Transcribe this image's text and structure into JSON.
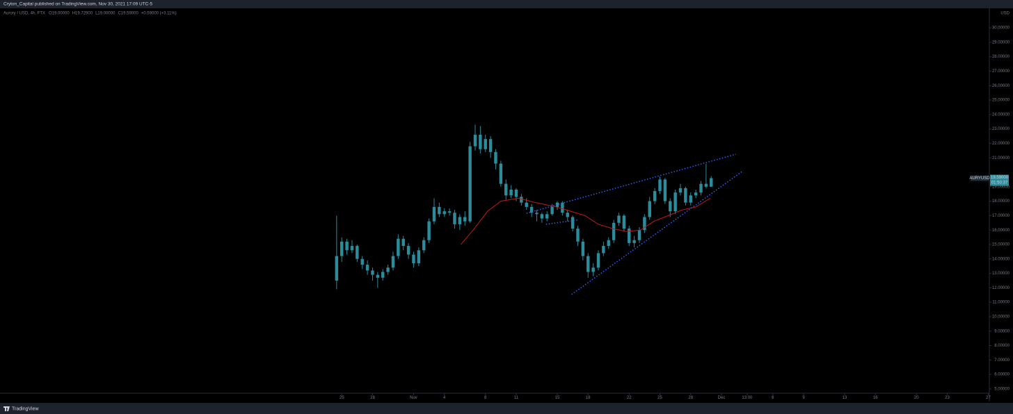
{
  "header": {
    "publisher": "Cryton_Capital published on TradingView.com, Nov 30, 2021 17:09 UTC-5",
    "symbol": "Aurory / USD, 4h, FTX",
    "ohlc": [
      "O19.00000",
      "H19.72900",
      "L19.00000",
      "C19.59000",
      "+0.59000 (+3.11%)"
    ]
  },
  "footer": {
    "brand": "TradingView"
  },
  "chart_data": {
    "type": "candlestick",
    "currency": "USD",
    "price_tag": {
      "symbol": "AURYUSD",
      "price": "19.59000",
      "countdown": "01:50:37"
    },
    "candle_color": "#2b8c9c",
    "x": [
      -0.5,
      0,
      0.5,
      1,
      1.5,
      2,
      2.5,
      3,
      3.5,
      4,
      4.5,
      5,
      5.5,
      6,
      6.5,
      7,
      7.5,
      8,
      8.5,
      9,
      9.5,
      10,
      10.5,
      11,
      11.5,
      12,
      12.5,
      13,
      13.5,
      14,
      14.5,
      15,
      15.5,
      16,
      16.5,
      17,
      17.5,
      18,
      18.5,
      19,
      19.5,
      20,
      20.5,
      21,
      21.5,
      22,
      22.5,
      23,
      23.5,
      24,
      24.5,
      25,
      25.5,
      26,
      26.5,
      27,
      27.5,
      28,
      28.5,
      29,
      29.5,
      30,
      30.5,
      31,
      31.5,
      32,
      32.5,
      33,
      33.5,
      34,
      34.5,
      35,
      35.5,
      36
    ],
    "open": [
      12.5,
      14.2,
      15.2,
      14.6,
      14.9,
      14.0,
      13.6,
      13.2,
      12.9,
      12.7,
      13.1,
      13.4,
      14.2,
      15.4,
      14.9,
      14.3,
      13.7,
      14.6,
      15.3,
      16.6,
      17.6,
      17.1,
      17.3,
      17.2,
      16.4,
      16.9,
      16.6,
      21.8,
      22.6,
      21.6,
      22.3,
      21.4,
      20.6,
      19.2,
      18.4,
      18.8,
      18.3,
      17.9,
      17.6,
      17.2,
      17.1,
      16.8,
      17.1,
      17.6,
      17.9,
      17.2,
      16.9,
      16.1,
      15.2,
      14.2,
      13.1,
      13.4,
      14.4,
      14.9,
      15.3,
      16.5,
      17.0,
      16.1,
      15.1,
      15.3,
      16.0,
      16.9,
      18.0,
      18.7,
      19.5,
      18.0,
      17.3,
      18.6,
      18.9,
      17.9,
      18.4,
      18.6,
      19.2,
      19.0
    ],
    "high": [
      17.0,
      15.5,
      15.4,
      15.3,
      15.0,
      14.2,
      13.9,
      13.4,
      13.1,
      13.3,
      13.6,
      14.5,
      15.7,
      15.6,
      15.1,
      14.5,
      14.8,
      15.5,
      16.8,
      18.2,
      17.9,
      17.5,
      17.5,
      17.4,
      17.1,
      17.3,
      22.1,
      23.3,
      23.2,
      22.6,
      22.5,
      21.6,
      20.8,
      19.5,
      19.1,
      18.9,
      18.5,
      18.2,
      17.8,
      17.4,
      17.2,
      17.3,
      17.8,
      18.0,
      18.0,
      17.4,
      17.0,
      16.3,
      15.4,
      14.4,
      13.7,
      14.6,
      15.2,
      15.5,
      16.7,
      17.2,
      17.1,
      16.3,
      15.6,
      16.2,
      17.1,
      18.3,
      18.9,
      19.7,
      19.6,
      18.2,
      18.8,
      19.2,
      19.0,
      18.6,
      18.8,
      19.4,
      20.6,
      19.729
    ],
    "low": [
      11.9,
      13.8,
      14.3,
      14.4,
      13.8,
      13.3,
      12.9,
      12.5,
      12.0,
      12.5,
      12.9,
      13.2,
      14.0,
      14.6,
      14.0,
      13.4,
      13.5,
      14.4,
      15.1,
      16.4,
      16.9,
      16.9,
      17.0,
      16.1,
      16.0,
      16.3,
      16.5,
      21.5,
      21.3,
      21.4,
      21.0,
      20.2,
      19.0,
      18.1,
      18.2,
      18.0,
      17.7,
      17.4,
      16.9,
      16.6,
      16.5,
      16.6,
      17.0,
      17.4,
      17.0,
      16.6,
      15.9,
      14.9,
      13.9,
      12.7,
      12.8,
      13.2,
      14.2,
      14.7,
      15.1,
      16.3,
      15.9,
      14.9,
      14.8,
      15.1,
      15.8,
      16.7,
      17.8,
      18.5,
      17.8,
      16.9,
      17.1,
      18.4,
      17.7,
      17.7,
      18.2,
      18.4,
      18.9,
      19.0
    ],
    "close": [
      14.2,
      15.2,
      14.6,
      14.9,
      14.0,
      13.6,
      13.2,
      12.9,
      12.7,
      13.1,
      13.4,
      14.2,
      15.4,
      14.9,
      14.3,
      13.7,
      14.6,
      15.3,
      16.6,
      17.6,
      17.1,
      17.3,
      17.2,
      16.4,
      16.9,
      16.6,
      21.8,
      22.6,
      21.6,
      22.3,
      21.4,
      20.6,
      19.2,
      18.4,
      18.8,
      18.3,
      17.9,
      17.6,
      17.2,
      17.1,
      16.8,
      17.1,
      17.6,
      17.9,
      17.2,
      16.9,
      16.1,
      15.2,
      14.2,
      13.1,
      13.4,
      14.4,
      14.9,
      15.3,
      16.5,
      17.0,
      16.1,
      15.1,
      15.3,
      16.0,
      16.9,
      18.0,
      18.7,
      19.5,
      18.0,
      17.3,
      18.6,
      18.9,
      17.9,
      18.4,
      18.6,
      19.2,
      19.0,
      19.59
    ],
    "ma": {
      "color": "#c2181b",
      "x": [
        11.6,
        12.8,
        14.2,
        15.5,
        17.2,
        18.9,
        20.9,
        22.3,
        23.7,
        25.0,
        26.4,
        27.7,
        29.1,
        30.4,
        31.8,
        33.2,
        34.5,
        35.9
      ],
      "values": [
        15.0,
        16.0,
        17.3,
        18.0,
        18.2,
        17.9,
        17.6,
        17.3,
        17.0,
        16.4,
        16.1,
        15.9,
        16.0,
        16.6,
        17.0,
        17.4,
        17.6,
        18.2
      ]
    },
    "trendlines": [
      {
        "color": "#2962ff",
        "x": [
          18.0,
          38.4
        ],
        "y": [
          17.16,
          21.25
        ]
      },
      {
        "color": "#2962ff",
        "x": [
          22.4,
          39.0
        ],
        "y": [
          11.54,
          20.05
        ]
      },
      {
        "color": "#2962ff",
        "x": [
          19.9,
          23.0
        ],
        "y": [
          16.4,
          16.7
        ]
      }
    ],
    "xlim": [
      -33.3,
      63.1
    ],
    "ylim": [
      4.13,
      31.35
    ],
    "xticks": [
      {
        "value": 0,
        "label": "25"
      },
      {
        "value": 3,
        "label": "28"
      },
      {
        "value": 7,
        "label": "Nov"
      },
      {
        "value": 10,
        "label": "4"
      },
      {
        "value": 14,
        "label": "8"
      },
      {
        "value": 17,
        "label": "11"
      },
      {
        "value": 21,
        "label": "15"
      },
      {
        "value": 24,
        "label": "18"
      },
      {
        "value": 28,
        "label": "22"
      },
      {
        "value": 31,
        "label": "25"
      },
      {
        "value": 34,
        "label": "28"
      },
      {
        "value": 37,
        "label": "Dec"
      },
      {
        "value": 39.5,
        "label": "13:00"
      },
      {
        "value": 42,
        "label": "6"
      },
      {
        "value": 45,
        "label": "9"
      },
      {
        "value": 49,
        "label": "13"
      },
      {
        "value": 52,
        "label": "16"
      },
      {
        "value": 56,
        "label": "20"
      },
      {
        "value": 59,
        "label": "23"
      },
      {
        "value": 63,
        "label": "27"
      }
    ],
    "yticks": [
      {
        "value": 5,
        "label": "5.00000"
      },
      {
        "value": 6,
        "label": "6.00000"
      },
      {
        "value": 7,
        "label": "7.00000"
      },
      {
        "value": 8,
        "label": "8.00000"
      },
      {
        "value": 9,
        "label": "9.00000"
      },
      {
        "value": 10,
        "label": "10.00000"
      },
      {
        "value": 11,
        "label": "11.00000"
      },
      {
        "value": 12,
        "label": "12.00000"
      },
      {
        "value": 13,
        "label": "13.00000"
      },
      {
        "value": 14,
        "label": "14.00000"
      },
      {
        "value": 15,
        "label": "15.00000"
      },
      {
        "value": 16,
        "label": "16.00000"
      },
      {
        "value": 17,
        "label": "17.00000"
      },
      {
        "value": 18,
        "label": "18.00000"
      },
      {
        "value": 19,
        "label": "19.00000"
      },
      {
        "value": 21,
        "label": "21.00000"
      },
      {
        "value": 22,
        "label": "22.00000"
      },
      {
        "value": 23,
        "label": "23.00000"
      },
      {
        "value": 24,
        "label": "24.00000"
      },
      {
        "value": 25,
        "label": "25.00000"
      },
      {
        "value": 26,
        "label": "26.00000"
      },
      {
        "value": 27,
        "label": "27.00000"
      },
      {
        "value": 28,
        "label": "28.00000"
      },
      {
        "value": 29,
        "label": "29.00000"
      },
      {
        "value": 30,
        "label": "30.00000"
      }
    ]
  }
}
